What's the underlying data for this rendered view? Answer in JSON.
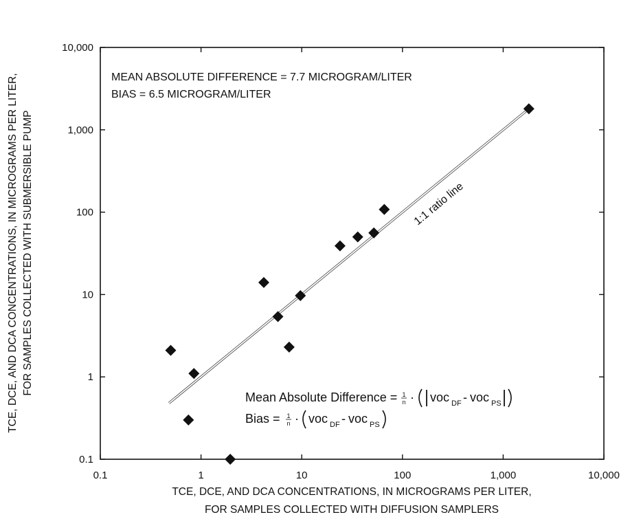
{
  "chart_data": {
    "type": "scatter",
    "x_scale": "log",
    "y_scale": "log",
    "xlim": [
      0.1,
      10000
    ],
    "ylim": [
      0.1,
      10000
    ],
    "grid": false,
    "x_ticks": [
      0.1,
      1,
      10,
      100,
      1000,
      10000
    ],
    "x_tick_labels": [
      "0.1",
      "1",
      "10",
      "100",
      "1,000",
      "10,000"
    ],
    "y_ticks": [
      0.1,
      1,
      10,
      100,
      1000,
      10000
    ],
    "y_tick_labels": [
      "0.1",
      "1",
      "10",
      "100",
      "1,000",
      "10,000"
    ],
    "xlabel_line1": "TCE, DCE,  AND DCA CONCENTRATIONS, IN MICROGRAMS PER LITER,",
    "xlabel_line2": "FOR SAMPLES COLLECTED WITH DIFFUSION SAMPLERS",
    "ylabel_line1": "TCE, DCE, AND DCA CONCENTRATIONS, IN MICROGRAMS PER LITER,",
    "ylabel_line2": "FOR SAMPLES COLLECTED WITH SUBMERSIBLE PUMP",
    "points": [
      {
        "x": 0.5,
        "y": 2.1
      },
      {
        "x": 0.75,
        "y": 0.3
      },
      {
        "x": 0.85,
        "y": 1.1
      },
      {
        "x": 1.95,
        "y": 0.1
      },
      {
        "x": 4.2,
        "y": 14
      },
      {
        "x": 5.8,
        "y": 5.4
      },
      {
        "x": 7.5,
        "y": 2.3
      },
      {
        "x": 9.7,
        "y": 9.7
      },
      {
        "x": 24,
        "y": 39
      },
      {
        "x": 36,
        "y": 50
      },
      {
        "x": 52,
        "y": 56
      },
      {
        "x": 66,
        "y": 108
      },
      {
        "x": 1800,
        "y": 1800
      }
    ],
    "ratio_line": {
      "x_start": 0.48,
      "x_end": 1800,
      "label": "1:1 ratio line"
    },
    "annotations": {
      "mean_abs_diff": "MEAN ABSOLUTE DIFFERENCE = 7.7 MICROGRAM/LITER",
      "bias": "BIAS = 6.5 MICROGRAM/LITER"
    },
    "formulas": {
      "mad_prefix": "Mean Absolute Difference = ",
      "bias_prefix": "Bias = ",
      "frac_num": "1",
      "frac_den": "n",
      "dot": "·",
      "voc": "voc",
      "sub_df": "DF",
      "sub_ps": "PS",
      "minus": "-"
    }
  }
}
